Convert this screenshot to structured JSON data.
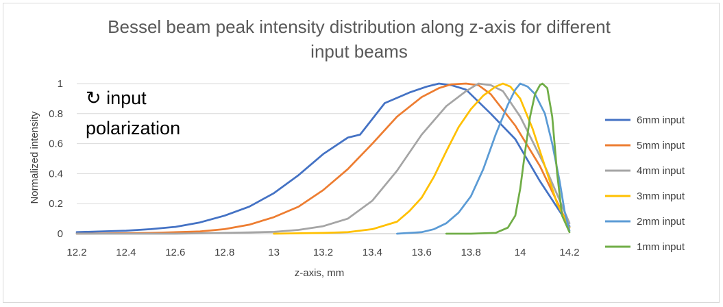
{
  "chart_data": {
    "type": "line",
    "title_lines": [
      "Bessel beam peak intensity distribution along z-axis for different",
      "input beams"
    ],
    "xlabel": "z-axis, mm",
    "ylabel": "Normalized intensity",
    "xlim": [
      12.2,
      14.2
    ],
    "ylim": [
      0,
      1
    ],
    "x_ticks": [
      "12.2",
      "12.4",
      "12.6",
      "12.8",
      "13",
      "13.2",
      "13.4",
      "13.6",
      "13.8",
      "14",
      "14.2"
    ],
    "y_ticks": [
      "0",
      "0.2",
      "0.4",
      "0.6",
      "0.8",
      "1"
    ],
    "grid": "horizontal",
    "legend_position": "right",
    "annotation": "↻ input polarization",
    "annotation_lines": [
      "↻ input",
      "polarization"
    ],
    "series": [
      {
        "name": "6mm input",
        "color": "#4472C4",
        "x": [
          12.2,
          12.4,
          12.5,
          12.6,
          12.7,
          12.8,
          12.9,
          13.0,
          13.1,
          13.2,
          13.3,
          13.35,
          13.45,
          13.55,
          13.62,
          13.67,
          13.72,
          13.78,
          13.88,
          13.98,
          14.08,
          14.2
        ],
        "y": [
          0.01,
          0.02,
          0.03,
          0.045,
          0.075,
          0.12,
          0.18,
          0.27,
          0.39,
          0.53,
          0.64,
          0.66,
          0.87,
          0.94,
          0.98,
          1.0,
          0.99,
          0.96,
          0.8,
          0.63,
          0.35,
          0.05
        ]
      },
      {
        "name": "5mm input",
        "color": "#ED7D31",
        "x": [
          12.2,
          12.5,
          12.7,
          12.8,
          12.9,
          13.0,
          13.1,
          13.2,
          13.3,
          13.4,
          13.5,
          13.6,
          13.67,
          13.72,
          13.78,
          13.83,
          13.88,
          13.98,
          14.08,
          14.2
        ],
        "y": [
          0.0,
          0.005,
          0.015,
          0.03,
          0.06,
          0.11,
          0.18,
          0.29,
          0.43,
          0.6,
          0.78,
          0.91,
          0.97,
          0.995,
          1.0,
          0.99,
          0.93,
          0.72,
          0.45,
          0.04
        ]
      },
      {
        "name": "4mm input",
        "color": "#A5A5A5",
        "x": [
          12.2,
          12.6,
          12.8,
          13.0,
          13.1,
          13.2,
          13.3,
          13.4,
          13.5,
          13.6,
          13.7,
          13.78,
          13.83,
          13.88,
          13.93,
          14.0,
          14.1,
          14.2
        ],
        "y": [
          0.0,
          0.0,
          0.005,
          0.012,
          0.025,
          0.05,
          0.1,
          0.22,
          0.42,
          0.66,
          0.85,
          0.95,
          1.0,
          0.99,
          0.95,
          0.78,
          0.45,
          0.07
        ]
      },
      {
        "name": "3mm input",
        "color": "#FFC000",
        "x": [
          13.0,
          13.2,
          13.3,
          13.4,
          13.5,
          13.55,
          13.6,
          13.65,
          13.7,
          13.75,
          13.8,
          13.85,
          13.9,
          13.93,
          13.96,
          14.0,
          14.05,
          14.1,
          14.15,
          14.2
        ],
        "y": [
          0.0,
          0.005,
          0.01,
          0.03,
          0.08,
          0.15,
          0.24,
          0.38,
          0.55,
          0.71,
          0.83,
          0.92,
          0.98,
          1.0,
          0.98,
          0.9,
          0.7,
          0.45,
          0.2,
          0.04
        ]
      },
      {
        "name": "2mm input",
        "color": "#5B9BD5",
        "x": [
          13.5,
          13.6,
          13.65,
          13.7,
          13.75,
          13.8,
          13.85,
          13.9,
          13.95,
          13.98,
          14.0,
          14.03,
          14.06,
          14.1,
          14.13,
          14.16,
          14.18,
          14.2
        ],
        "y": [
          0.0,
          0.01,
          0.03,
          0.07,
          0.14,
          0.25,
          0.43,
          0.66,
          0.86,
          0.96,
          1.0,
          0.98,
          0.93,
          0.8,
          0.6,
          0.35,
          0.15,
          0.02
        ]
      },
      {
        "name": "1mm input",
        "color": "#70AD47",
        "x": [
          13.7,
          13.8,
          13.9,
          13.95,
          13.98,
          14.0,
          14.02,
          14.04,
          14.06,
          14.08,
          14.09,
          14.11,
          14.13,
          14.15,
          14.17,
          14.2
        ],
        "y": [
          0.0,
          0.0,
          0.005,
          0.04,
          0.12,
          0.3,
          0.55,
          0.78,
          0.93,
          0.99,
          1.0,
          0.97,
          0.78,
          0.4,
          0.12,
          0.01
        ]
      }
    ]
  }
}
